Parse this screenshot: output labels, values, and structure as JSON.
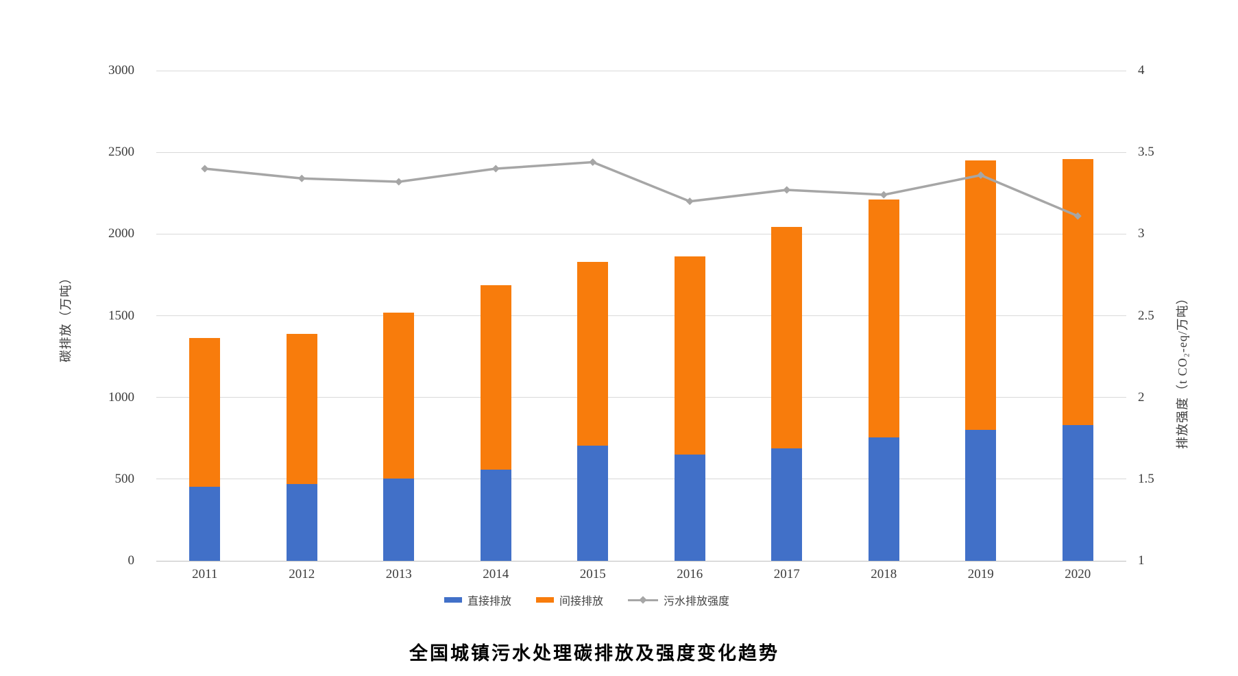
{
  "chart_data": {
    "type": "combo: stacked bar + line (dual axis)",
    "title": "全国城镇污水处理碳排放及强度变化趋势",
    "categories": [
      "2011",
      "2012",
      "2013",
      "2014",
      "2015",
      "2016",
      "2017",
      "2018",
      "2019",
      "2020"
    ],
    "series": [
      {
        "name": "直接排放",
        "type": "bar",
        "stack": "emissions",
        "axis": "left",
        "color": "#4170c8",
        "values": [
          455,
          470,
          505,
          560,
          705,
          650,
          690,
          755,
          800,
          830
        ]
      },
      {
        "name": "间接排放",
        "type": "bar",
        "stack": "emissions",
        "axis": "left",
        "color": "#f87c0c",
        "values": [
          910,
          920,
          1015,
          1125,
          1125,
          1215,
          1355,
          1455,
          1650,
          1630
        ]
      },
      {
        "name": "污水排放强度",
        "type": "line",
        "axis": "right",
        "color": "#a6a6a6",
        "values": [
          3.4,
          3.34,
          3.32,
          3.4,
          3.44,
          3.2,
          3.27,
          3.24,
          3.36,
          3.11
        ]
      }
    ],
    "left_axis": {
      "label": "碳排放（万吨）",
      "min": 0,
      "max": 3000,
      "ticks": [
        0,
        500,
        1000,
        1500,
        2000,
        2500,
        3000
      ]
    },
    "right_axis": {
      "label": "排放强度（t CO₂-eq/万吨）",
      "min": 1,
      "max": 4,
      "ticks": [
        1,
        1.5,
        2,
        2.5,
        3,
        3.5,
        4
      ]
    },
    "legend_position": "bottom",
    "grid": true,
    "colors": {
      "gridline": "#d9d9d9",
      "axis_line": "#bdbdbd",
      "tick_text": "#3b3b3b"
    }
  }
}
